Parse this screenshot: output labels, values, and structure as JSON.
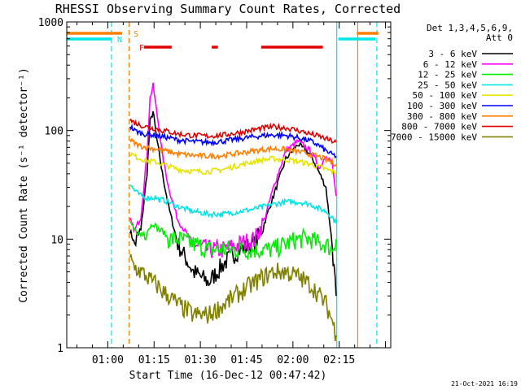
{
  "chart_data": {
    "type": "line",
    "title": "RHESSI Observing Summary Count Rates, Corrected",
    "xlabel": "Start Time (16-Dec-12 00:47:42)",
    "ylabel": "Corrected Count Rate (s⁻¹ detector⁻¹)",
    "yscale": "log",
    "ylim": [
      1,
      1000
    ],
    "xlim_minutes": [
      -1,
      104
    ],
    "xtick_labels": [
      "01:00",
      "01:15",
      "01:30",
      "01:45",
      "02:00",
      "02:15"
    ],
    "xtick_minutes": [
      12.3,
      27.3,
      42.3,
      57.3,
      72.3,
      87.3
    ],
    "ytick_labels": [
      "1",
      "10",
      "100",
      "1000"
    ],
    "ytick_values": [
      1,
      10,
      100,
      1000
    ],
    "legend": {
      "header": "Det 1,3,4,5,6,9,",
      "subheader": "Att 0",
      "placement": "right"
    },
    "flags": [
      {
        "code": "S",
        "name": "SAA",
        "color": "#ff7f00",
        "intervals": [
          [
            -1,
            17
          ],
          [
            93,
            100
          ]
        ]
      },
      {
        "code": "N",
        "name": "Night",
        "color": "#00e5e5",
        "intervals": [
          [
            -1,
            13.5
          ],
          [
            87,
            99
          ]
        ]
      },
      {
        "code": "F",
        "name": "Flare",
        "color": "#e00000",
        "intervals": [
          [
            24,
            33
          ],
          [
            46,
            48
          ],
          [
            62,
            82
          ]
        ]
      }
    ],
    "vlines": [
      {
        "x": 13.5,
        "color": "#00e5e5",
        "dash": true
      },
      {
        "x": 19.2,
        "color": "#ff7f00",
        "dash": true
      },
      {
        "x": 86.5,
        "color": "#00e5e5",
        "dash": false
      },
      {
        "x": 93.3,
        "color": "#ff7f00",
        "dash": false
      },
      {
        "x": 99.5,
        "color": "#00e5e5",
        "dash": true
      }
    ],
    "x_minutes": [
      19.5,
      21,
      23,
      25,
      26,
      27,
      28,
      29,
      30,
      32,
      35,
      40,
      45,
      50,
      55,
      60,
      63,
      66,
      70,
      74,
      78,
      81,
      83,
      85,
      86.3
    ],
    "series": [
      {
        "name": "3 - 6 keV",
        "color": "#000000",
        "values": [
          12,
          9,
          12,
          40,
          120,
          150,
          90,
          60,
          40,
          20,
          9,
          5,
          4,
          6,
          8,
          9,
          14,
          25,
          55,
          75,
          60,
          40,
          30,
          9,
          3
        ]
      },
      {
        "name": "6 - 12 keV",
        "color": "#ff00ff",
        "values": [
          15,
          12,
          16,
          60,
          200,
          260,
          160,
          100,
          60,
          30,
          15,
          9,
          8,
          8,
          9,
          10,
          15,
          30,
          65,
          80,
          65,
          45,
          60,
          50,
          25
        ]
      },
      {
        "name": "12 - 25 keV",
        "color": "#00ee00",
        "values": [
          14,
          12,
          11,
          12,
          13,
          14,
          13,
          12,
          12,
          10,
          10,
          9,
          8,
          8,
          8,
          8,
          8,
          8,
          9,
          10,
          10,
          9,
          9,
          8,
          10
        ]
      },
      {
        "name": "25 - 50 keV",
        "color": "#00e5e5",
        "values": [
          32,
          28,
          25,
          24,
          24,
          24,
          24,
          23,
          23,
          22,
          20,
          18,
          17,
          17,
          18,
          19,
          20,
          21,
          22,
          22,
          21,
          19,
          18,
          16,
          14
        ]
      },
      {
        "name": "50 - 100 keV",
        "color": "#e5e500",
        "values": [
          62,
          58,
          55,
          53,
          52,
          52,
          51,
          50,
          49,
          47,
          44,
          42,
          42,
          44,
          48,
          52,
          54,
          55,
          54,
          52,
          49,
          46,
          44,
          42,
          41
        ]
      },
      {
        "name": "100 - 300 keV",
        "color": "#0000ff",
        "values": [
          110,
          100,
          95,
          92,
          92,
          91,
          90,
          89,
          88,
          86,
          82,
          79,
          78,
          80,
          84,
          88,
          90,
          91,
          90,
          86,
          80,
          72,
          65,
          60,
          58
        ]
      },
      {
        "name": "300 - 800 keV",
        "color": "#ff7f00",
        "values": [
          82,
          76,
          72,
          70,
          69,
          68,
          68,
          67,
          66,
          64,
          61,
          59,
          58,
          59,
          62,
          65,
          67,
          68,
          67,
          64,
          60,
          57,
          54,
          51,
          49
        ]
      },
      {
        "name": "800 - 7000 keV",
        "color": "#e00000",
        "values": [
          125,
          118,
          112,
          108,
          106,
          105,
          104,
          102,
          100,
          98,
          93,
          90,
          89,
          91,
          96,
          102,
          106,
          108,
          106,
          100,
          93,
          88,
          84,
          80,
          78
        ]
      },
      {
        "name": "7000 - 15000 keV",
        "color": "#808000",
        "values": [
          6.5,
          5.5,
          5,
          4.5,
          4.2,
          4,
          3.8,
          3.6,
          3.3,
          3,
          2.5,
          2,
          2,
          2.5,
          3.2,
          4,
          4.5,
          5,
          5,
          4.5,
          3.8,
          3,
          2.5,
          1.8,
          1.3
        ]
      }
    ]
  },
  "footer": {
    "timestamp": "21-Oct-2021 16:19"
  }
}
